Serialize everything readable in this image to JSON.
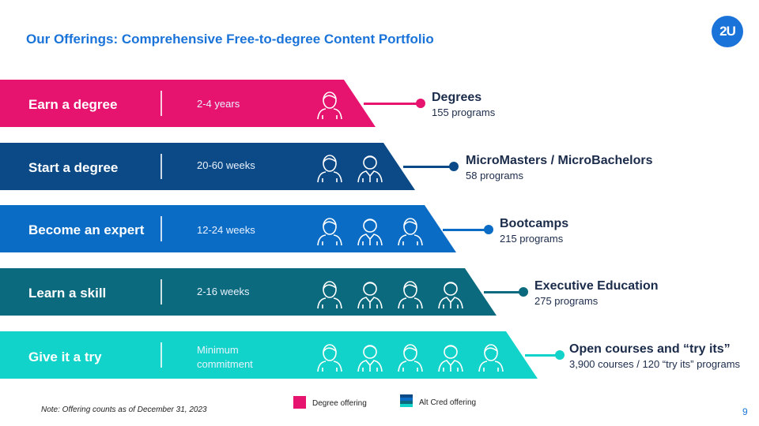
{
  "header": {
    "title": "Our Offerings: Comprehensive Free-to-degree Content Portfolio",
    "logo_text": "2U"
  },
  "bands": [
    {
      "label": "Earn a degree",
      "duration": "2-4 years",
      "color": "#e6136f",
      "people": 1,
      "offering_title": "Degrees",
      "offering_count": "155 programs"
    },
    {
      "label": "Start a degree",
      "duration": "20-60 weeks",
      "color": "#0b4a86",
      "people": 2,
      "offering_title": "MicroMasters / MicroBachelors",
      "offering_count": "58 programs"
    },
    {
      "label": "Become an expert",
      "duration": "12-24 weeks",
      "color": "#0a6cc4",
      "people": 3,
      "offering_title": "Bootcamps",
      "offering_count": "215 programs"
    },
    {
      "label": "Learn a skill",
      "duration": "2-16 weeks",
      "color": "#0b6a7e",
      "people": 4,
      "offering_title": "Executive Education",
      "offering_count": "275 programs"
    },
    {
      "label": "Give it a try",
      "duration": "Minimum commitment",
      "color": "#12d3c9",
      "people": 5,
      "offering_title": "Open courses and “try its”",
      "offering_count": "3,900 courses / 120 “try its” programs"
    }
  ],
  "legend": {
    "degree_label": "Degree offering",
    "degree_color": "#e6136f",
    "altcred_label": "Alt Cred offering",
    "altcred_colors": [
      "#0b4a86",
      "#0a6cc4",
      "#0b6a7e",
      "#12d3c9"
    ]
  },
  "footer": {
    "note": "Note: Offering counts as of December 31, 2023",
    "page_number": "9"
  }
}
